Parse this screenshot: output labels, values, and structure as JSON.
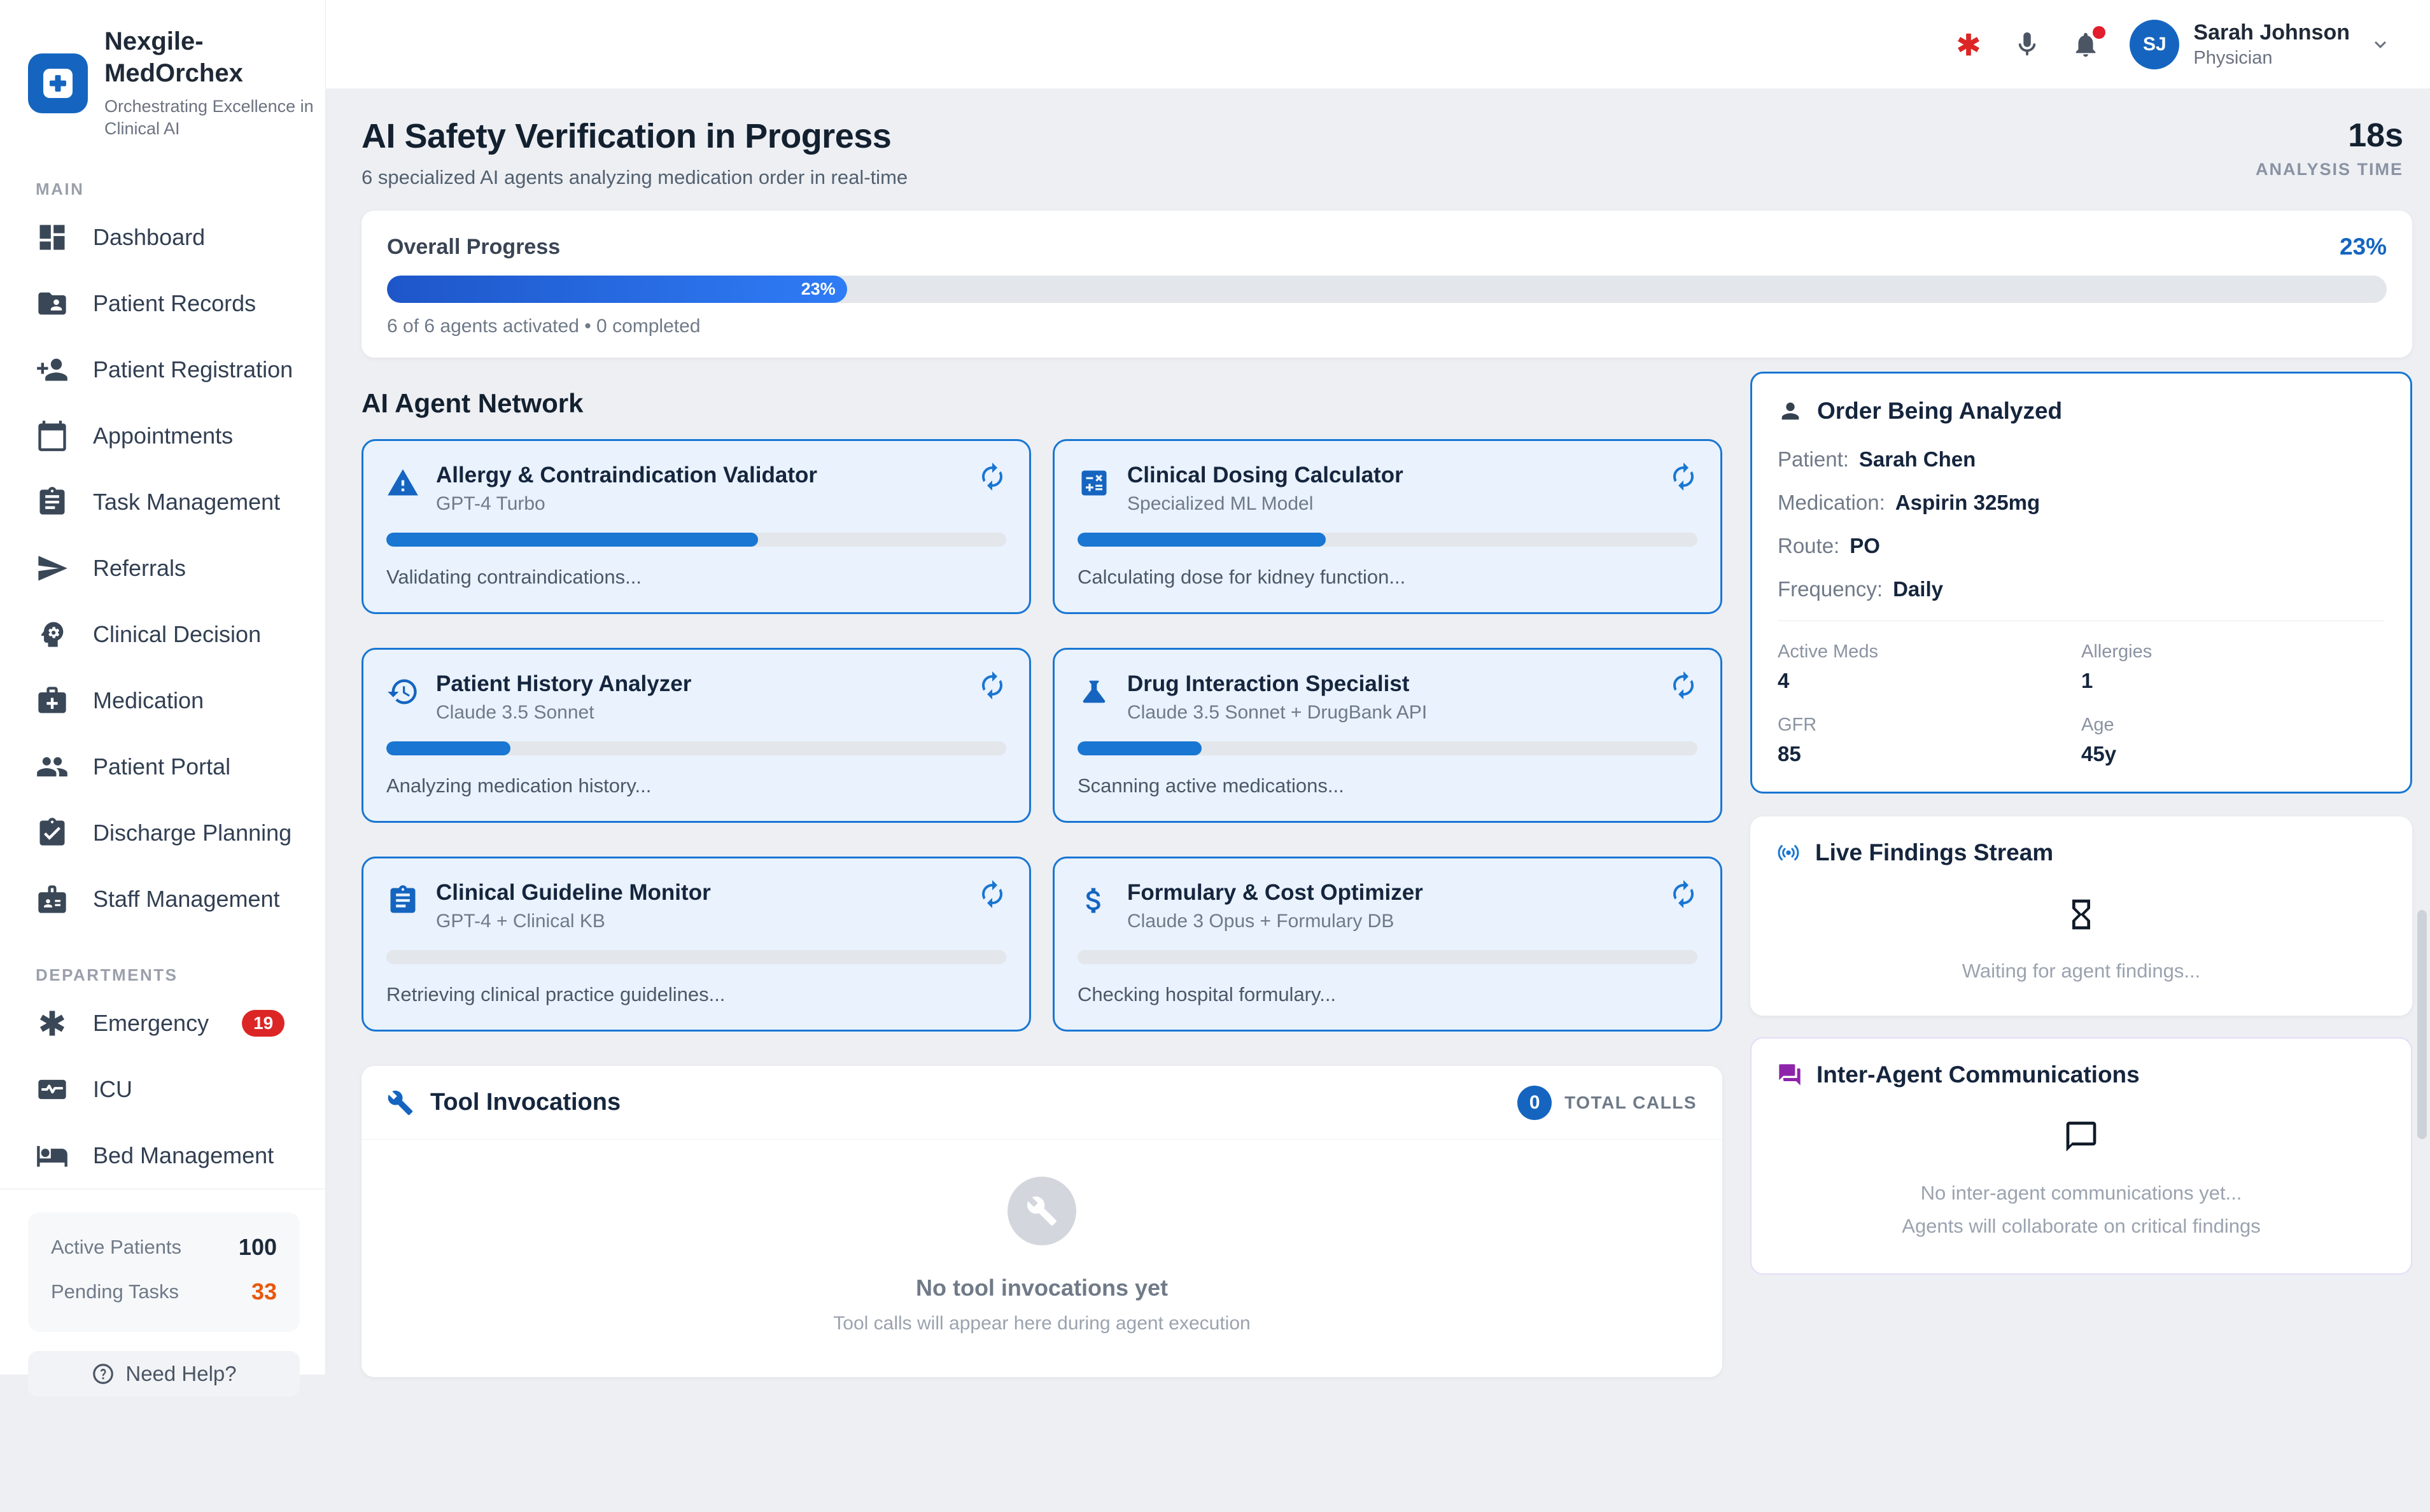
{
  "colors": {
    "primary": "#1565c0",
    "primary2": "#1976d2",
    "danger": "#dc2626",
    "orange": "#e8590c",
    "purple": "#8e24aa",
    "bg": "#edeff3",
    "card_blue_bg": "#e9f2fd",
    "card_blue_border": "#1976d2"
  },
  "brand": {
    "name": "Nexgile-MedOrchex",
    "tagline": "Orchestrating Excellence in Clinical AI"
  },
  "sidebar": {
    "sections": [
      {
        "label": "MAIN",
        "items": [
          {
            "label": "Dashboard",
            "icon": "dashboard"
          },
          {
            "label": "Patient Records",
            "icon": "folder-shared"
          },
          {
            "label": "Patient Registration",
            "icon": "person-add"
          },
          {
            "label": "Appointments",
            "icon": "calendar"
          },
          {
            "label": "Task Management",
            "icon": "clipboard"
          },
          {
            "label": "Referrals",
            "icon": "send"
          },
          {
            "label": "Clinical Decision",
            "icon": "psychology"
          },
          {
            "label": "Medication",
            "icon": "medical-bag"
          },
          {
            "label": "Patient Portal",
            "icon": "people"
          },
          {
            "label": "Discharge Planning",
            "icon": "clipboard-check"
          },
          {
            "label": "Staff Management",
            "icon": "badge"
          }
        ]
      },
      {
        "label": "DEPARTMENTS",
        "items": [
          {
            "label": "Emergency",
            "icon": "emergency",
            "badge": "19"
          },
          {
            "label": "ICU",
            "icon": "monitor-pulse"
          },
          {
            "label": "Bed Management",
            "icon": "bed"
          }
        ]
      }
    ],
    "stats": [
      {
        "label": "Active Patients",
        "value": "100",
        "tone": "dark"
      },
      {
        "label": "Pending Tasks",
        "value": "33",
        "tone": "orange"
      }
    ],
    "help_label": "Need Help?"
  },
  "header": {
    "user": {
      "initials": "SJ",
      "name": "Sarah Johnson",
      "role": "Physician"
    }
  },
  "page": {
    "title": "AI Safety Verification in Progress",
    "subtitle": "6 specialized AI agents analyzing medication order in real-time",
    "analysis_time": "18s",
    "analysis_time_label": "ANALYSIS TIME"
  },
  "overall": {
    "label": "Overall Progress",
    "percent": 23,
    "percent_label": "23%",
    "status": "6 of 6 agents activated • 0 completed"
  },
  "network": {
    "heading": "AI Agent Network",
    "agents": [
      {
        "name": "Allergy & Contraindication Validator",
        "model": "GPT-4 Turbo",
        "progress": 60,
        "status": "Validating contraindications...",
        "icon": "warning"
      },
      {
        "name": "Clinical Dosing Calculator",
        "model": "Specialized ML Model",
        "progress": 40,
        "status": "Calculating dose for kidney function...",
        "icon": "calculator"
      },
      {
        "name": "Patient History Analyzer",
        "model": "Claude 3.5 Sonnet",
        "progress": 20,
        "status": "Analyzing medication history...",
        "icon": "history"
      },
      {
        "name": "Drug Interaction Specialist",
        "model": "Claude 3.5 Sonnet + DrugBank API",
        "progress": 20,
        "status": "Scanning active medications...",
        "icon": "flask"
      },
      {
        "name": "Clinical Guideline Monitor",
        "model": "GPT-4 + Clinical KB",
        "progress": 0,
        "status": "Retrieving clinical practice guidelines...",
        "icon": "clipboard"
      },
      {
        "name": "Formulary & Cost Optimizer",
        "model": "Claude 3 Opus + Formulary DB",
        "progress": 0,
        "status": "Checking hospital formulary...",
        "icon": "dollar"
      }
    ]
  },
  "tools": {
    "title": "Tool Invocations",
    "total_calls": "0",
    "total_calls_label": "TOTAL CALLS",
    "empty_title": "No tool invocations yet",
    "empty_sub": "Tool calls will appear here during agent execution"
  },
  "order": {
    "title": "Order Being Analyzed",
    "fields": [
      {
        "label": "Patient:",
        "value": "Sarah Chen"
      },
      {
        "label": "Medication:",
        "value": "Aspirin 325mg"
      },
      {
        "label": "Route:",
        "value": "PO"
      },
      {
        "label": "Frequency:",
        "value": "Daily"
      }
    ],
    "stats": [
      {
        "label": "Active Meds",
        "value": "4"
      },
      {
        "label": "Allergies",
        "value": "1"
      },
      {
        "label": "GFR",
        "value": "85"
      },
      {
        "label": "Age",
        "value": "45y"
      }
    ]
  },
  "findings": {
    "title": "Live Findings Stream",
    "empty": "Waiting for agent findings..."
  },
  "comms": {
    "title": "Inter-Agent Communications",
    "empty1": "No inter-agent communications yet...",
    "empty2": "Agents will collaborate on critical findings"
  }
}
